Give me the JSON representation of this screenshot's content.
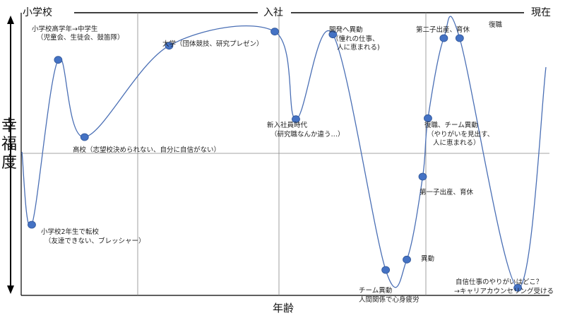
{
  "chart_data": {
    "type": "line",
    "ylabel_chars": [
      "幸",
      "福",
      "度"
    ],
    "xlabel": "年齢",
    "top_labels": {
      "start": "小学校",
      "middle": "入社",
      "end": "現在"
    },
    "series": [
      {
        "points": [
          {
            "x": 0.02,
            "y": -0.75
          },
          {
            "x": 0.07,
            "y": 1.0
          },
          {
            "x": 0.12,
            "y": 0.18
          },
          {
            "x": 0.28,
            "y": 1.15
          },
          {
            "x": 0.48,
            "y": 1.3
          },
          {
            "x": 0.52,
            "y": 0.37
          },
          {
            "x": 0.59,
            "y": 1.27
          },
          {
            "x": 0.69,
            "y": -1.23
          },
          {
            "x": 0.73,
            "y": -1.12
          },
          {
            "x": 0.76,
            "y": -0.24
          },
          {
            "x": 0.77,
            "y": 0.38
          },
          {
            "x": 0.8,
            "y": 1.23
          },
          {
            "x": 0.83,
            "y": 1.23
          },
          {
            "x": 0.94,
            "y": -1.42
          }
        ]
      }
    ],
    "annotations": [
      {
        "lines": [
          "小学校高学年→中学生",
          "（児童会、生徒会、鼓笛隊）"
        ]
      },
      {
        "lines": [
          "高校（志望校決められない、自分に自信がない）"
        ]
      },
      {
        "lines": [
          "小学校2年生で転校",
          "（友達できない、ブレッシャー）"
        ]
      },
      {
        "lines": [
          "大学（団体競技、研究プレゼン）"
        ]
      },
      {
        "lines": [
          "新入社員時代",
          "（研究職なんか違う…）"
        ]
      },
      {
        "lines": [
          "開発へ異動",
          "（憧れの仕事、",
          "人に恵まれる)"
        ]
      },
      {
        "lines": [
          "第二子出産、育休"
        ]
      },
      {
        "lines": [
          "復職"
        ]
      },
      {
        "lines": [
          "復職、チーム異動",
          "（やりがいを見出す、",
          "人に恵まれる）"
        ]
      },
      {
        "lines": [
          "第一子出産、育休"
        ]
      },
      {
        "lines": [
          "異動"
        ]
      },
      {
        "lines": [
          "チーム異動",
          "人間関係で心身疲労"
        ]
      },
      {
        "lines": [
          "自信仕事のやりがいはどこ？",
          "→キャリアカウンセリング受ける"
        ]
      }
    ],
    "grid": true,
    "xlim": [
      0,
      1
    ],
    "ylim": [
      -1.5,
      1.5
    ],
    "colors": {
      "curve": "#4a6fb5",
      "marker": "#4472c4",
      "marker_stroke": "#2f5597",
      "axis": "#000000",
      "grid": "#888888"
    }
  }
}
